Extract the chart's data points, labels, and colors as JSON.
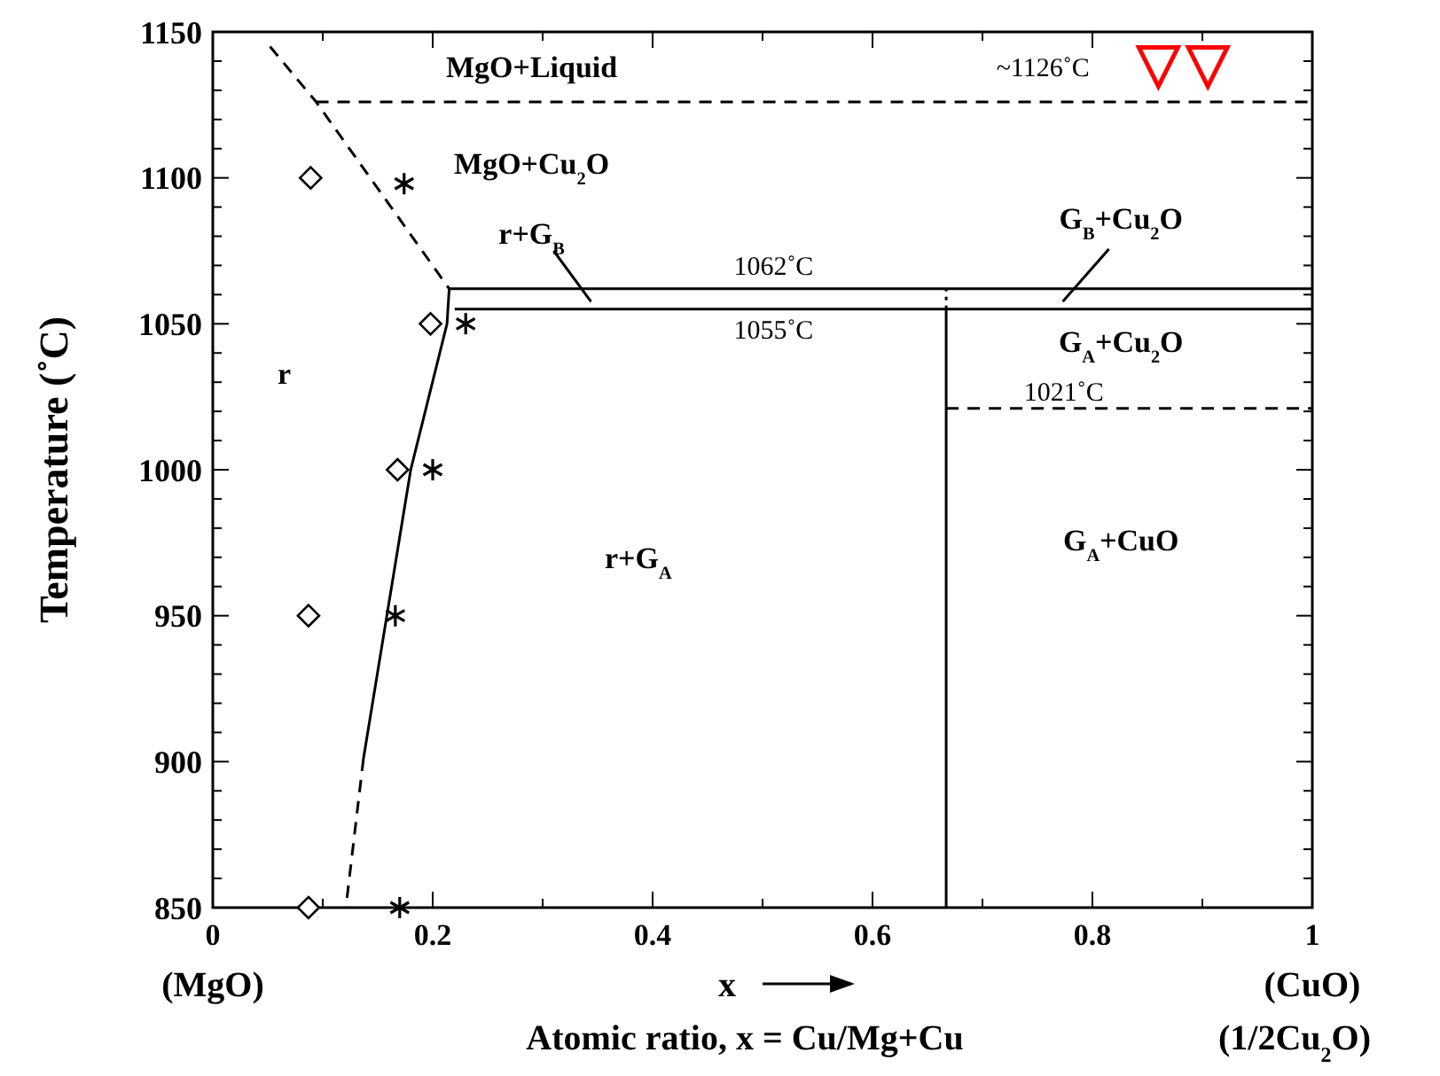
{
  "chart_data": {
    "type": "line",
    "xlabel": "Atomic ratio, x = Cu/Mg+Cu",
    "ylabel": "Temperature (˚C)",
    "xlim": [
      0,
      1
    ],
    "ylim": [
      850,
      1150
    ],
    "xticks": [
      0,
      {
        "value": 0.1,
        "label": null
      },
      0.2,
      {
        "value": 0.3,
        "label": null
      },
      0.4,
      {
        "value": 0.5,
        "label": null
      },
      0.6,
      {
        "value": 0.7,
        "label": null
      },
      0.8,
      {
        "value": 0.9,
        "label": null
      },
      1
    ],
    "yticks": [
      850,
      {
        "value": 860,
        "label": null
      },
      {
        "value": 870,
        "label": null
      },
      {
        "value": 880,
        "label": null
      },
      {
        "value": 890,
        "label": null
      },
      900,
      {
        "value": 910,
        "label": null
      },
      {
        "value": 920,
        "label": null
      },
      {
        "value": 930,
        "label": null
      },
      {
        "value": 940,
        "label": null
      },
      950,
      {
        "value": 960,
        "label": null
      },
      {
        "value": 970,
        "label": null
      },
      {
        "value": 980,
        "label": null
      },
      {
        "value": 990,
        "label": null
      },
      1000,
      {
        "value": 1010,
        "label": null
      },
      {
        "value": 1020,
        "label": null
      },
      {
        "value": 1030,
        "label": null
      },
      {
        "value": 1040,
        "label": null
      },
      1050,
      {
        "value": 1060,
        "label": null
      },
      {
        "value": 1070,
        "label": null
      },
      {
        "value": 1080,
        "label": null
      },
      {
        "value": 1090,
        "label": null
      },
      1100,
      {
        "value": 1110,
        "label": null
      },
      {
        "value": 1120,
        "label": null
      },
      {
        "value": 1130,
        "label": null
      },
      {
        "value": 1140,
        "label": null
      },
      1150
    ],
    "series": [
      {
        "color": "#000000",
        "line_style": "dashed",
        "x": [
          0.052,
          0.094,
          0.215
        ],
        "values": [
          1145,
          1126,
          1062
        ]
      },
      {
        "color": "#000000",
        "line_style": "dashed",
        "x": [
          0.094,
          1
        ],
        "values": [
          1126,
          1126
        ]
      },
      {
        "color": "#000000",
        "line_style": "solid",
        "x": [
          0.215,
          1
        ],
        "values": [
          1062,
          1062
        ]
      },
      {
        "color": "#000000",
        "line_style": "solid",
        "x": [
          0.22,
          1
        ],
        "values": [
          1055,
          1055
        ]
      },
      {
        "color": "#000000",
        "line_style": "solid",
        "x": [
          0.215,
          0.213,
          0.18,
          0.137
        ],
        "values": [
          1062,
          1050,
          1000,
          901
        ]
      },
      {
        "color": "#000000",
        "line_style": "dashed",
        "x": [
          0.137,
          0.121
        ],
        "values": [
          901,
          850
        ]
      },
      {
        "color": "#000000",
        "line_style": "solid",
        "x": [
          0.667,
          0.667
        ],
        "values": [
          850,
          1055
        ]
      },
      {
        "color": "#000000",
        "line_style": "dotted",
        "x": [
          0.667,
          0.667
        ],
        "values": [
          1055,
          1062
        ]
      },
      {
        "color": "#000000",
        "line_style": "dashed",
        "x": [
          0.667,
          1
        ],
        "values": [
          1021,
          1021
        ]
      },
      {
        "color": "#000000",
        "line_style": "solid",
        "x": [
          0.31,
          0.344
        ],
        "values": [
          1075,
          1057.6
        ]
      },
      {
        "color": "#000000",
        "line_style": "solid",
        "x": [
          0.815,
          0.773
        ],
        "values": [
          1075.6,
          1057.6
        ]
      },
      {
        "type": "scatter",
        "color": "#000000",
        "marker": "diamond",
        "x": [
          0.089,
          0.198,
          0.168,
          0.087,
          0.087
        ],
        "values": [
          1100,
          1050,
          1000,
          950,
          850
        ]
      },
      {
        "type": "scatter",
        "color": "#000000",
        "marker": "cross",
        "x": [
          0.174,
          0.23,
          0.2,
          0.166,
          0.17
        ],
        "values": [
          1098,
          1050,
          1000,
          950,
          850
        ]
      },
      {
        "type": "scatter",
        "color": "#ff0000",
        "marker": "triangle",
        "x": [
          0.86,
          0.905
        ],
        "values": [
          1138,
          1138
        ]
      }
    ],
    "annotations": [
      "MgO+Liquid",
      "~1126˚C",
      "MgO+Cu$_{2}$O",
      "r+G$_{B}$",
      "1062˚C",
      "1055˚C",
      "G$_{B}$+Cu$_{2}$O",
      "G$_{A}$+Cu$_{2}$O",
      "1021˚C",
      "r",
      "r+G$_{A}$",
      "G$_{A}$+CuO",
      "(MgO)",
      "x",
      "(CuO)",
      "(1/2Cu$_{2}$O)"
    ]
  }
}
